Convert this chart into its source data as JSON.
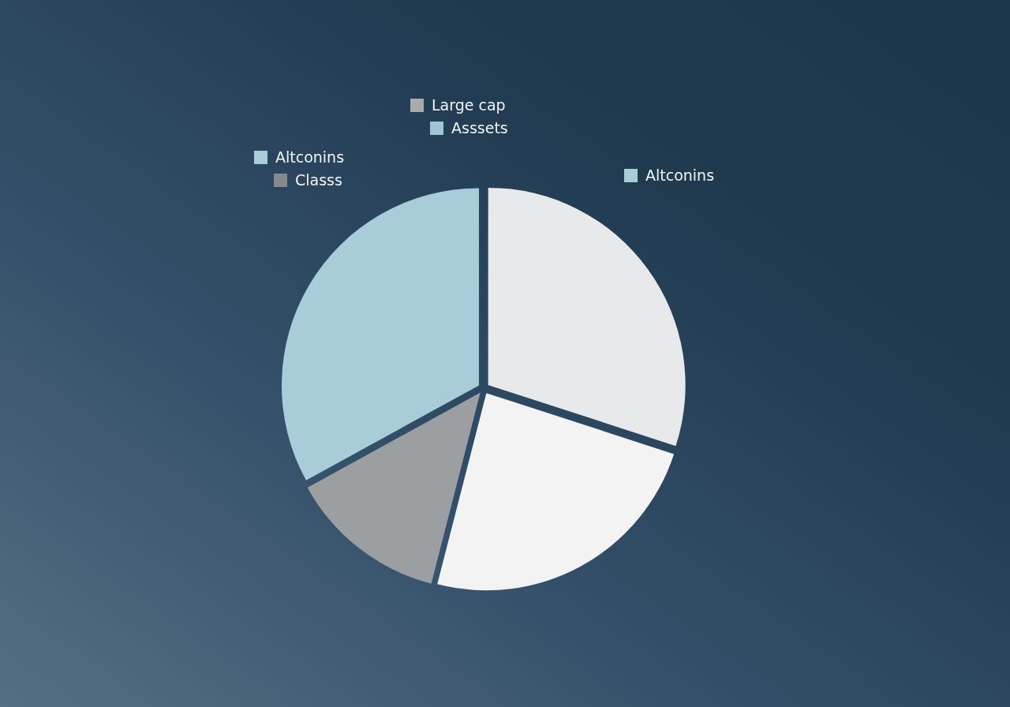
{
  "chart_data": {
    "type": "pie",
    "categories": [
      null,
      null,
      null,
      null
    ],
    "values": [
      30,
      24,
      13,
      33
    ],
    "colors": [
      "#e8e9ea",
      "#f3f3f3",
      "#9c9fa2",
      "#a8cdd8"
    ],
    "annotations": [
      "Large cap",
      "Asssets",
      "Altconins",
      "Classs",
      "Altconins"
    ]
  }
}
